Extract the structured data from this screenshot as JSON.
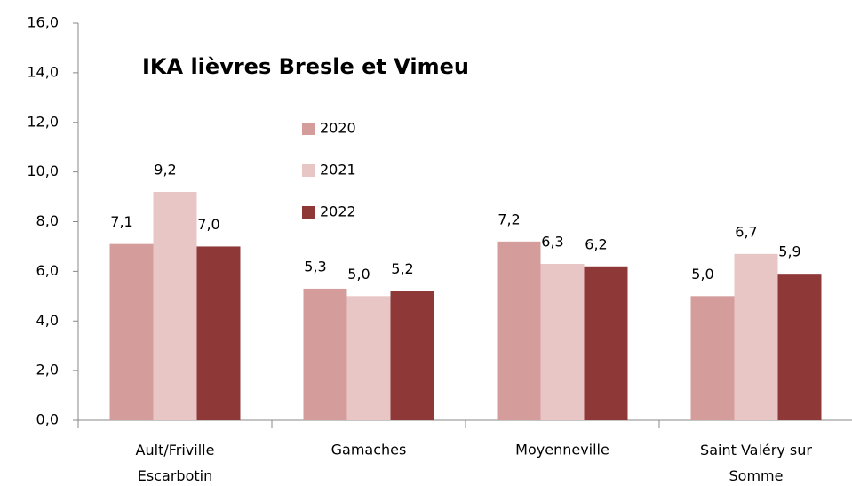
{
  "chart_data": {
    "type": "bar",
    "title": "IKA lièvres Bresle et Vimeu",
    "categories": [
      "Ault/Friville\nEscarbotin",
      "Gamaches",
      "Moyenneville",
      "Saint Valéry sur\nSomme"
    ],
    "series": [
      {
        "name": "2020",
        "color": "#d59c9c",
        "values": [
          7.1,
          5.3,
          7.2,
          5.0
        ],
        "value_labels": [
          "7,1",
          "5,3",
          "7,2",
          "5,0"
        ]
      },
      {
        "name": "2021",
        "color": "#e9c6c6",
        "values": [
          9.2,
          5.0,
          6.3,
          6.7
        ],
        "value_labels": [
          "9,2",
          "5,0",
          "6,3",
          "6,7"
        ]
      },
      {
        "name": "2022",
        "color": "#8e3838",
        "values": [
          7.0,
          5.2,
          6.2,
          5.9
        ],
        "value_labels": [
          "7,0",
          "5,2",
          "6,2",
          "5,9"
        ]
      }
    ],
    "ylim": [
      0,
      16
    ],
    "yticks": [
      {
        "value": 0,
        "label": "0,0"
      },
      {
        "value": 2,
        "label": "2,0"
      },
      {
        "value": 4,
        "label": "4,0"
      },
      {
        "value": 6,
        "label": "6,0"
      },
      {
        "value": 8,
        "label": "8,0"
      },
      {
        "value": 10,
        "label": "10,0"
      },
      {
        "value": 12,
        "label": "12,0"
      },
      {
        "value": 14,
        "label": "14,0"
      },
      {
        "value": 16,
        "label": "16,0"
      }
    ]
  }
}
